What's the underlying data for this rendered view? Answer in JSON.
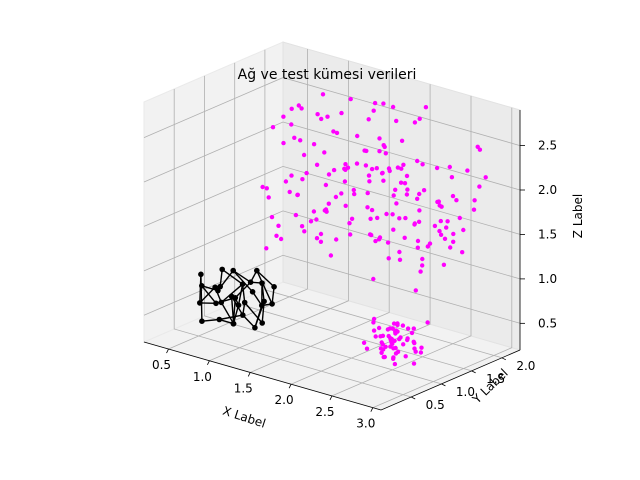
{
  "chart_data": {
    "type": "scatter",
    "title": "Ağ ve test kümesi verileri",
    "xlabel": "X Label",
    "ylabel": "Y Label",
    "zlabel": "Z Label",
    "x_ticks": [
      "0.5",
      "1.0",
      "1.5",
      "2.0",
      "2.5",
      "3.0"
    ],
    "y_ticks": [
      "0.5",
      "1.0",
      "1.5",
      "2.0"
    ],
    "z_ticks": [
      "0.5",
      "1.0",
      "1.5",
      "2.0",
      "2.5"
    ],
    "xlim": [
      0.2,
      3.1
    ],
    "ylim": [
      0.0,
      2.3
    ],
    "zlim": [
      0.2,
      2.9
    ],
    "grid": true,
    "series": [
      {
        "type": "network",
        "color": "#000000",
        "points": [
          [
            0.55,
            0.45,
            0.6
          ],
          [
            0.7,
            0.5,
            0.8
          ],
          [
            0.85,
            0.4,
            0.7
          ],
          [
            1.0,
            0.55,
            0.9
          ],
          [
            1.1,
            0.45,
            0.75
          ],
          [
            0.6,
            0.65,
            0.55
          ],
          [
            0.8,
            0.7,
            0.65
          ],
          [
            0.95,
            0.75,
            0.85
          ],
          [
            1.2,
            0.6,
            0.95
          ],
          [
            1.05,
            0.8,
            0.6
          ],
          [
            0.65,
            0.35,
            0.45
          ],
          [
            0.9,
            0.3,
            0.55
          ],
          [
            1.15,
            0.35,
            0.65
          ],
          [
            0.75,
            0.55,
            1.0
          ],
          [
            1.3,
            0.5,
            0.8
          ],
          [
            0.5,
            0.55,
            0.75
          ],
          [
            1.25,
            0.7,
            0.7
          ],
          [
            0.85,
            0.6,
            0.4
          ],
          [
            1.0,
            0.4,
            0.5
          ],
          [
            0.7,
            0.8,
            0.9
          ],
          [
            1.1,
            0.65,
            1.05
          ],
          [
            0.6,
            0.4,
            0.95
          ],
          [
            1.35,
            0.4,
            0.6
          ],
          [
            0.95,
            0.55,
            0.65
          ],
          [
            0.8,
            0.45,
            0.85
          ],
          [
            1.15,
            0.55,
            0.45
          ],
          [
            0.55,
            0.75,
            0.65
          ],
          [
            1.2,
            0.8,
            0.85
          ],
          [
            0.9,
            0.85,
            0.7
          ],
          [
            1.05,
            0.3,
            0.85
          ]
        ],
        "edges": [
          [
            0,
            1
          ],
          [
            1,
            2
          ],
          [
            2,
            3
          ],
          [
            3,
            4
          ],
          [
            0,
            5
          ],
          [
            5,
            6
          ],
          [
            6,
            7
          ],
          [
            7,
            8
          ],
          [
            8,
            9
          ],
          [
            10,
            11
          ],
          [
            11,
            12
          ],
          [
            12,
            4
          ],
          [
            13,
            3
          ],
          [
            14,
            8
          ],
          [
            15,
            5
          ],
          [
            16,
            9
          ],
          [
            17,
            6
          ],
          [
            18,
            11
          ],
          [
            19,
            7
          ],
          [
            20,
            16
          ],
          [
            21,
            0
          ],
          [
            22,
            14
          ],
          [
            23,
            17
          ],
          [
            24,
            13
          ],
          [
            25,
            12
          ],
          [
            26,
            15
          ],
          [
            27,
            20
          ],
          [
            28,
            19
          ],
          [
            29,
            18
          ],
          [
            1,
            24
          ],
          [
            23,
            3
          ],
          [
            9,
            28
          ],
          [
            4,
            22
          ],
          [
            10,
            21
          ],
          [
            26,
            19
          ],
          [
            2,
            18
          ],
          [
            25,
            9
          ],
          [
            6,
            23
          ],
          [
            14,
            25
          ],
          [
            20,
            7
          ],
          [
            27,
            16
          ],
          [
            29,
            12
          ]
        ]
      },
      {
        "type": "scatter",
        "color": "#ff00ff",
        "cluster": {
          "center": [
            2.45,
            1.1,
            0.5
          ],
          "spread": [
            0.15,
            0.15,
            0.12
          ],
          "count": 60
        },
        "sparse": {
          "xlim": [
            0.9,
            3.0
          ],
          "ylim": [
            0.7,
            2.2
          ],
          "zlim": [
            1.2,
            2.7
          ],
          "count": 175
        }
      }
    ]
  }
}
